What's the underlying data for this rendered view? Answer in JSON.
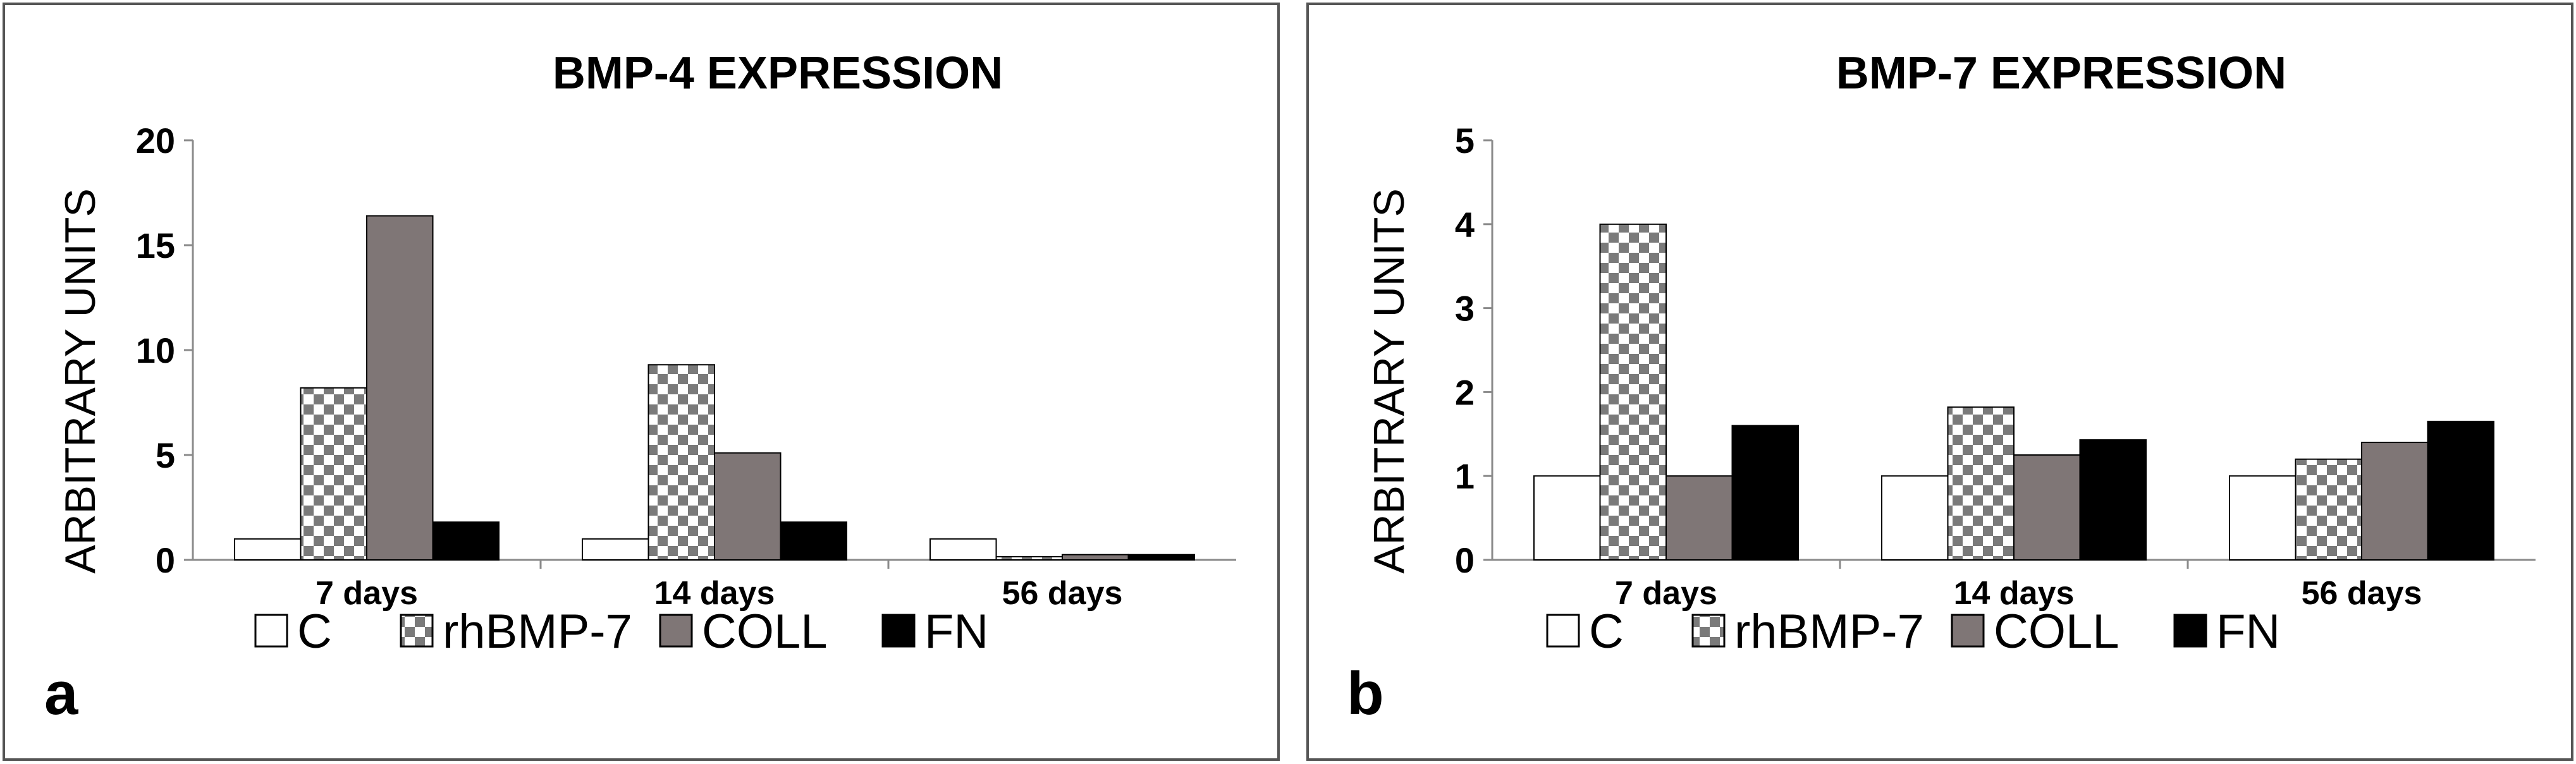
{
  "patterns": {
    "C": "white",
    "rhBMP-7": "checker",
    "COLL": "gray",
    "FN": "black"
  },
  "colors": {
    "C": "#ffffff",
    "rhBMP-7": "#7a7a7a",
    "COLL": "#7f7676",
    "FN": "#000000",
    "frame": "#555555",
    "axis": "#8a8a8a"
  },
  "chart_data": [
    {
      "type": "bar",
      "panel_label": "a",
      "title": "BMP-4 EXPRESSION",
      "ylabel": "ARBITRARY UNITS",
      "xlabel": "",
      "ylim": [
        0,
        20
      ],
      "yticks": [
        "0",
        "5",
        "10",
        "15",
        "20"
      ],
      "ytick_values": [
        0,
        5,
        10,
        15,
        20
      ],
      "categories": [
        "7 days",
        "14 days",
        "56 days"
      ],
      "series": [
        {
          "name": "C",
          "values": [
            1.0,
            1.0,
            1.0
          ]
        },
        {
          "name": "rhBMP-7",
          "values": [
            8.2,
            9.3,
            0.15
          ]
        },
        {
          "name": "COLL",
          "values": [
            16.4,
            5.1,
            0.25
          ]
        },
        {
          "name": "FN",
          "values": [
            1.8,
            1.8,
            0.25
          ]
        }
      ],
      "legend_position": "bottom",
      "grid": false
    },
    {
      "type": "bar",
      "panel_label": "b",
      "title": "BMP-7 EXPRESSION",
      "ylabel": "ARBITRARY UNITS",
      "xlabel": "",
      "ylim": [
        0,
        5
      ],
      "yticks": [
        "0",
        "1",
        "2",
        "3",
        "4",
        "5"
      ],
      "ytick_values": [
        0,
        1,
        2,
        3,
        4,
        5
      ],
      "categories": [
        "7 days",
        "14 days",
        "56 days"
      ],
      "series": [
        {
          "name": "C",
          "values": [
            1.0,
            1.0,
            1.0
          ]
        },
        {
          "name": "rhBMP-7",
          "values": [
            4.0,
            1.82,
            1.2
          ]
        },
        {
          "name": "COLL",
          "values": [
            1.0,
            1.25,
            1.4
          ]
        },
        {
          "name": "FN",
          "values": [
            1.6,
            1.43,
            1.65
          ]
        }
      ],
      "legend_position": "bottom",
      "grid": false
    }
  ]
}
